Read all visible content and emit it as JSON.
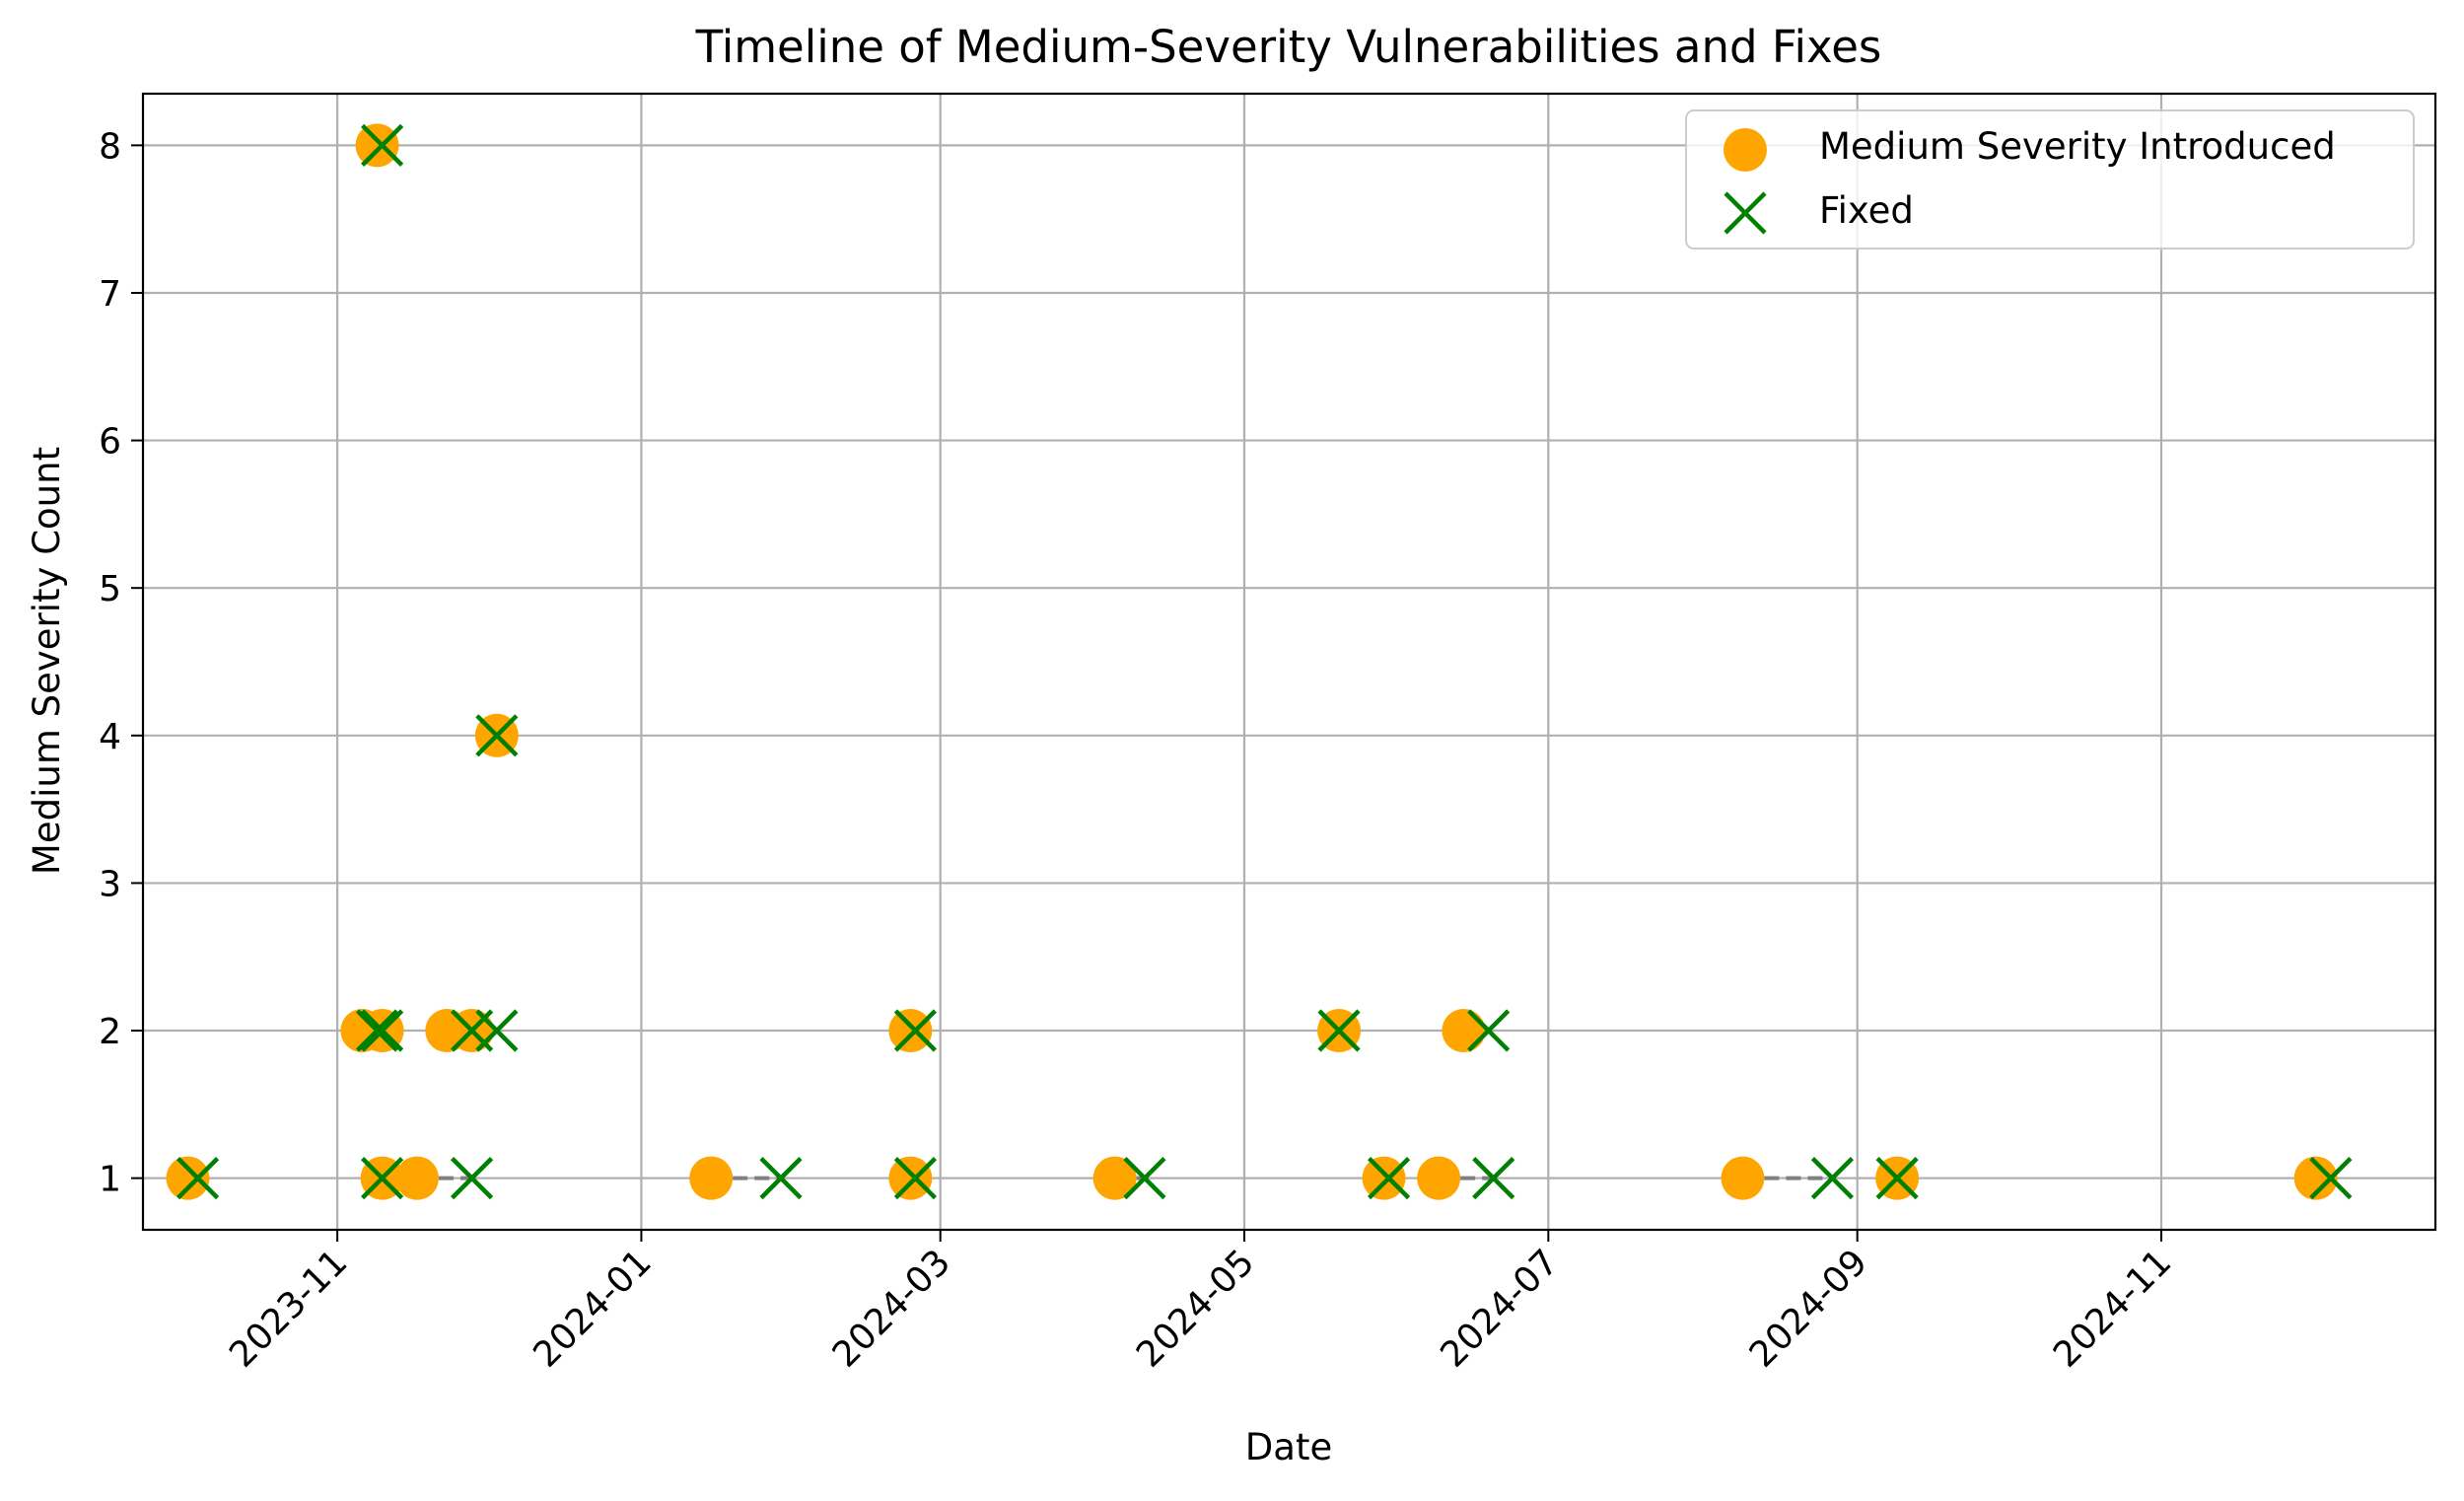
{
  "chart_data": {
    "type": "scatter",
    "title": "Timeline of Medium-Severity Vulnerabilities and Fixes",
    "xlabel": "Date",
    "ylabel": "Medium Severity Count",
    "xlim": [
      "2023-09-23",
      "2024-12-26"
    ],
    "ylim": [
      0.65,
      8.35
    ],
    "x_ticks": [
      "2023-11-01",
      "2024-01-01",
      "2024-03-01",
      "2024-05-01",
      "2024-07-01",
      "2024-09-01",
      "2024-11-01"
    ],
    "x_tick_labels": [
      "2023-11",
      "2024-01",
      "2024-03",
      "2024-05",
      "2024-07",
      "2024-09",
      "2024-11"
    ],
    "y_ticks": [
      1,
      2,
      3,
      4,
      5,
      6,
      7,
      8
    ],
    "y_tick_labels": [
      "1",
      "2",
      "3",
      "4",
      "5",
      "6",
      "7",
      "8"
    ],
    "grid": true,
    "legend_position": "top-right",
    "colors": {
      "introduced": "#ffa500",
      "fixed": "#008000",
      "connector": "#808080"
    },
    "series": [
      {
        "name": "Medium Severity Introduced",
        "marker": "circle"
      },
      {
        "name": "Fixed",
        "marker": "x"
      }
    ],
    "vulnerabilities": [
      {
        "introduced": "2023-10-02",
        "fixed": "2023-10-04",
        "count": 1
      },
      {
        "introduced": "2023-11-06",
        "fixed": "2023-11-09",
        "count": 2
      },
      {
        "introduced": "2023-11-09",
        "fixed": "2023-11-10",
        "count": 8
      },
      {
        "introduced": "2023-11-10",
        "fixed": "2023-11-10",
        "count": 2
      },
      {
        "introduced": "2023-11-10",
        "fixed": "2023-11-10",
        "count": 1
      },
      {
        "introduced": "2023-11-17",
        "fixed": "2023-11-28",
        "count": 1
      },
      {
        "introduced": "2023-11-23",
        "fixed": "2023-11-28",
        "count": 2
      },
      {
        "introduced": "2023-11-28",
        "fixed": "2023-12-03",
        "count": 2
      },
      {
        "introduced": "2023-12-03",
        "fixed": "2023-12-03",
        "count": 4
      },
      {
        "introduced": "2024-01-15",
        "fixed": "2024-01-29",
        "count": 1
      },
      {
        "introduced": "2024-02-24",
        "fixed": "2024-02-25",
        "count": 2
      },
      {
        "introduced": "2024-02-24",
        "fixed": "2024-02-25",
        "count": 1
      },
      {
        "introduced": "2024-04-05",
        "fixed": "2024-04-11",
        "count": 1
      },
      {
        "introduced": "2024-05-20",
        "fixed": "2024-05-20",
        "count": 2
      },
      {
        "introduced": "2024-05-29",
        "fixed": "2024-05-30",
        "count": 1
      },
      {
        "introduced": "2024-06-09",
        "fixed": "2024-06-20",
        "count": 1
      },
      {
        "introduced": "2024-06-14",
        "fixed": "2024-06-19",
        "count": 2
      },
      {
        "introduced": "2024-08-09",
        "fixed": "2024-08-27",
        "count": 1
      },
      {
        "introduced": "2024-09-09",
        "fixed": "2024-09-09",
        "count": 1
      },
      {
        "introduced": "2024-12-02",
        "fixed": "2024-12-05",
        "count": 1
      }
    ]
  }
}
